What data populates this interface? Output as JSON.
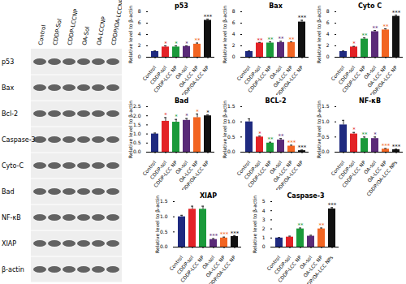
{
  "chart_data": [
    {
      "type": "bar",
      "title": "p53",
      "y_label": "Relative level to β-actin",
      "categories": [
        "Control",
        "CDDP-sol",
        "CDDP-LCC NP",
        "OA-sol",
        "OA-LCC NP",
        "CDDP/OA-LCC NP"
      ],
      "values": [
        1.0,
        1.8,
        1.8,
        1.9,
        2.3,
        6.5
      ],
      "errors": [
        0.1,
        0.2,
        0.2,
        0.1,
        0.2,
        0.2
      ],
      "significance": [
        null,
        "*",
        "*",
        "*",
        "**",
        "***"
      ],
      "colors": [
        "#1f2a80",
        "#e32226",
        "#1a9a3a",
        "#5a2a78",
        "#f26522",
        "#111111"
      ],
      "ylim": [
        0,
        8
      ],
      "yticks": [
        0,
        2,
        4,
        6,
        8
      ]
    },
    {
      "type": "bar",
      "title": "Bax",
      "y_label": "Relative level to β-actin",
      "categories": [
        "Control",
        "CDDP-sol",
        "CDDP-LCC NP",
        "OA-sol",
        "OA-LCC NP",
        "CDDP/OA-LCC NP"
      ],
      "values": [
        1.0,
        2.5,
        2.5,
        2.6,
        2.6,
        6.2
      ],
      "errors": [
        0.1,
        0.1,
        0.2,
        0.2,
        0.1,
        0.3
      ],
      "significance": [
        null,
        "**",
        "**",
        "**",
        "**",
        "***"
      ],
      "colors": [
        "#1f2a80",
        "#e32226",
        "#1a9a3a",
        "#5a2a78",
        "#f26522",
        "#111111"
      ],
      "ylim": [
        0,
        8
      ],
      "yticks": [
        0,
        2,
        4,
        6,
        8
      ]
    },
    {
      "type": "bar",
      "title": "Cyto C",
      "y_label": "Relative level to β-actin",
      "categories": [
        "Control",
        "CDDP-sol",
        "CDDP-LCC NP",
        "OA-sol",
        "OA-LCC NP",
        "CDDP/OA-LCC NP"
      ],
      "values": [
        1.0,
        1.8,
        3.2,
        4.5,
        4.8,
        7.2
      ],
      "errors": [
        0.1,
        0.1,
        0.2,
        0.2,
        0.2,
        0.2
      ],
      "significance": [
        null,
        "*",
        "**",
        "**",
        "**",
        "***"
      ],
      "colors": [
        "#1f2a80",
        "#e32226",
        "#1a9a3a",
        "#5a2a78",
        "#f26522",
        "#111111"
      ],
      "ylim": [
        0,
        8
      ],
      "yticks": [
        0,
        2,
        4,
        6,
        8
      ]
    },
    {
      "type": "bar",
      "title": "Bad",
      "y_label": "Relative level to β-actin",
      "categories": [
        "Control",
        "CDDP-sol",
        "CDDP-LCC NP",
        "OA-sol",
        "OA-LCC NP",
        "CDDP/OA-LCC NP"
      ],
      "values": [
        1.0,
        1.7,
        1.65,
        1.75,
        1.9,
        2.0
      ],
      "errors": [
        0.05,
        0.2,
        0.15,
        0.1,
        0.2,
        0.05
      ],
      "significance": [
        null,
        "*",
        "*",
        "*",
        "*",
        "*"
      ],
      "colors": [
        "#1f2a80",
        "#e32226",
        "#1a9a3a",
        "#5a2a78",
        "#f26522",
        "#111111"
      ],
      "ylim": [
        0,
        2.5
      ],
      "yticks": [
        {
          "value": 0,
          "label": "0.0"
        },
        {
          "value": 0.5,
          "label": "0.5"
        },
        {
          "value": 1,
          "label": "1.0"
        },
        {
          "value": 1.5,
          "label": "1.5"
        },
        {
          "value": 2,
          "label": "2.0"
        },
        {
          "value": 2.5,
          "label": "2.5"
        }
      ]
    },
    {
      "type": "bar",
      "title": "BCL-2",
      "y_label": "Relative level to β-actin",
      "categories": [
        "Control",
        "CDDP-sol",
        "CDDP-LCC NP",
        "OA-sol",
        "OA-LCC NP",
        "CDDP/OA-LCC NP"
      ],
      "values": [
        1.0,
        0.5,
        0.3,
        0.4,
        0.2,
        0.05
      ],
      "errors": [
        0.1,
        0.03,
        0.03,
        0.05,
        0.03,
        0.02
      ],
      "significance": [
        null,
        "*",
        "**",
        "**",
        "***",
        "***"
      ],
      "colors": [
        "#1f2a80",
        "#e32226",
        "#1a9a3a",
        "#5a2a78",
        "#f26522",
        "#111111"
      ],
      "ylim": [
        0,
        1.5
      ],
      "yticks": [
        {
          "value": 0,
          "label": "0.0"
        },
        {
          "value": 0.5,
          "label": "0.5"
        },
        {
          "value": 1,
          "label": "1.0"
        },
        {
          "value": 1.5,
          "label": "1.5"
        }
      ]
    },
    {
      "type": "bar",
      "title": "NF-κB",
      "y_label": "Relative level to β-actin",
      "categories": [
        "Control",
        "CDDP-sol",
        "CDDP-LCC NP",
        "OA-sol",
        "OA-LCC NP",
        "CDDP/OA-LCC NPs"
      ],
      "values": [
        0.9,
        0.6,
        0.45,
        0.45,
        0.1,
        0.08
      ],
      "errors": [
        0.15,
        0.05,
        0.05,
        0.05,
        0.02,
        0.02
      ],
      "significance": [
        null,
        "*",
        "**",
        "*",
        "***",
        "***"
      ],
      "colors": [
        "#1f2a80",
        "#e32226",
        "#1a9a3a",
        "#5a2a78",
        "#f26522",
        "#111111"
      ],
      "ylim": [
        0,
        1.5
      ],
      "yticks": [
        {
          "value": 0,
          "label": "0.0"
        },
        {
          "value": 0.5,
          "label": "0.5"
        },
        {
          "value": 1,
          "label": "1.0"
        },
        {
          "value": 1.5,
          "label": "1.5"
        }
      ]
    },
    {
      "type": "bar",
      "title": "XIAP",
      "y_label": "Relative level to β-actin",
      "categories": [
        "Control",
        "CDDP-sol",
        "CDDP-LCC NP",
        "OA-sol",
        "OA-LCC NP",
        "CDDP/OA-LCC NP"
      ],
      "values": [
        1.0,
        1.25,
        1.25,
        0.25,
        0.3,
        0.35
      ],
      "errors": [
        0.05,
        0.1,
        0.1,
        0.03,
        0.03,
        0.03
      ],
      "significance": [
        null,
        null,
        null,
        "***",
        "***",
        "***"
      ],
      "colors": [
        "#1f2a80",
        "#e32226",
        "#1a9a3a",
        "#5a2a78",
        "#f26522",
        "#111111"
      ],
      "ylim": [
        0,
        1.5
      ],
      "yticks": [
        {
          "value": 0,
          "label": "0.0"
        },
        {
          "value": 0.5,
          "label": "0.5"
        },
        {
          "value": 1,
          "label": "1.0"
        },
        {
          "value": 1.5,
          "label": "1.5"
        }
      ]
    },
    {
      "type": "bar",
      "title": "Caspase-3",
      "y_label": "Relative level to β-actin",
      "categories": [
        "Control",
        "CDDP-sol",
        "CDDP-LCC NP",
        "OA-sol",
        "OA-LCC NP",
        "CDDP/OA-LCC NPs"
      ],
      "values": [
        1.0,
        1.1,
        2.0,
        1.2,
        2.0,
        4.2
      ],
      "errors": [
        0.05,
        0.1,
        0.1,
        0.1,
        0.1,
        0.15
      ],
      "significance": [
        null,
        null,
        "**",
        null,
        "**",
        "***"
      ],
      "colors": [
        "#1f2a80",
        "#e32226",
        "#1a9a3a",
        "#5a2a78",
        "#f26522",
        "#111111"
      ],
      "ylim": [
        0,
        5
      ],
      "yticks": [
        0,
        1,
        2,
        3,
        4,
        5
      ]
    }
  ],
  "blot": {
    "lanes": [
      "Control",
      "CDDP-Sol",
      "CDDP-LCCNP",
      "OA-Sol",
      "OA-LCCNP",
      "CDDP/OA-LCCNP"
    ],
    "proteins": [
      "p53",
      "Bax",
      "Bcl-2",
      "Caspase-3",
      "Cyto-C",
      "Bad",
      "NF-κB",
      "XIAP",
      "β-actin"
    ]
  }
}
